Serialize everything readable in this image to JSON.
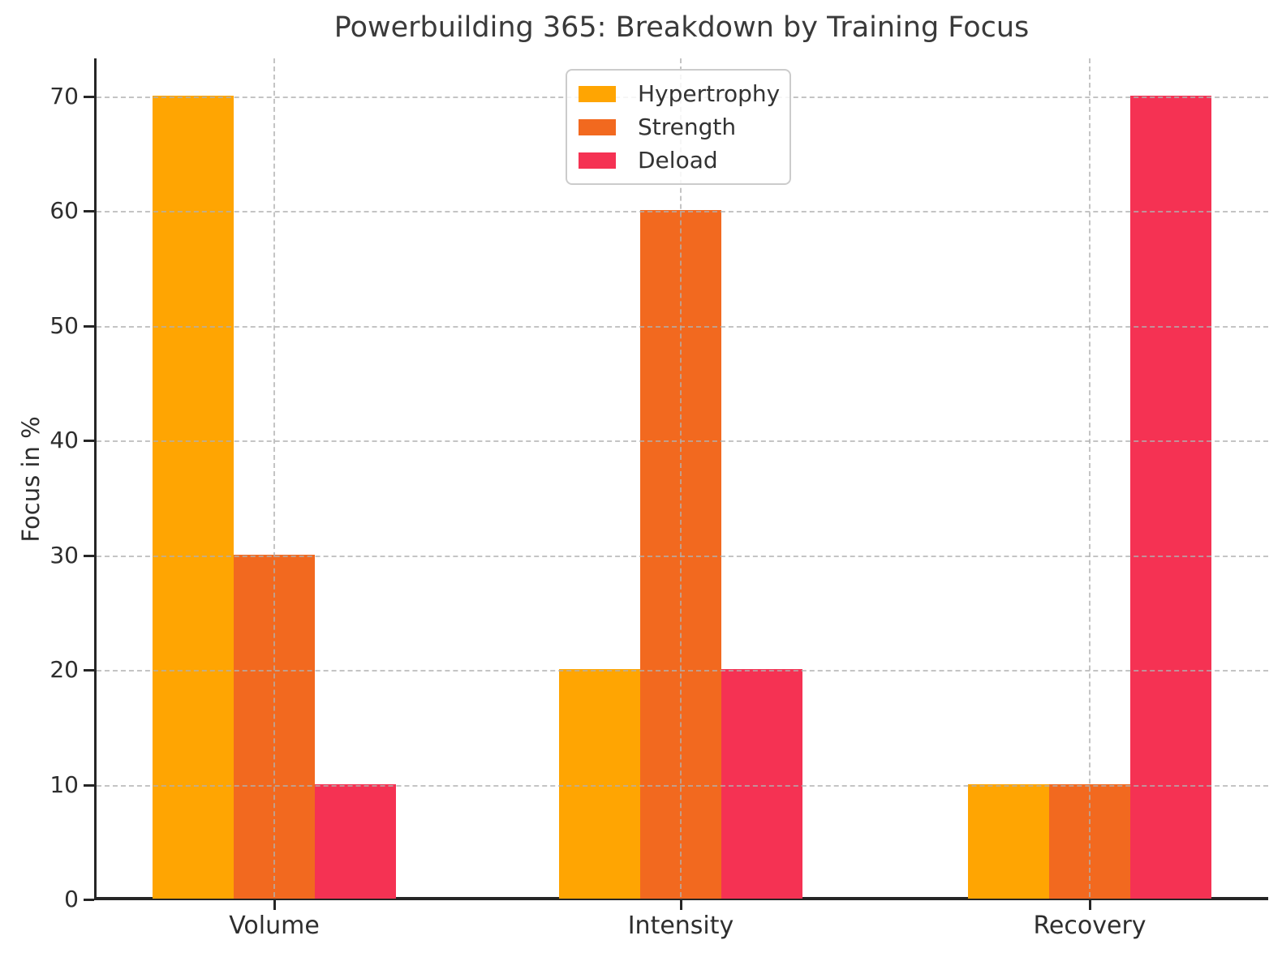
{
  "chart_data": {
    "type": "bar",
    "title": "Powerbuilding 365: Breakdown by Training Focus",
    "xlabel": "",
    "ylabel": "Focus in %",
    "categories": [
      "Volume",
      "Intensity",
      "Recovery"
    ],
    "series": [
      {
        "name": "Hypertrophy",
        "color": "#FFA502",
        "values": [
          70,
          20,
          10
        ]
      },
      {
        "name": "Strength",
        "color": "#F2691F",
        "values": [
          30,
          60,
          10
        ]
      },
      {
        "name": "Deload",
        "color": "#F53253",
        "values": [
          10,
          20,
          70
        ]
      }
    ],
    "ylim": [
      0,
      70
    ],
    "yticks": [
      0,
      10,
      20,
      30,
      40,
      50,
      60,
      70
    ],
    "grid": true,
    "grid_style": "dashed",
    "legend": {
      "position": "upper center",
      "labels": [
        "Hypertrophy",
        "Strength",
        "Deload"
      ]
    },
    "colors": {
      "background": "#FFFFFF",
      "grid": "#B0B0B0",
      "spine": "#262626",
      "tick_text": "#2E2E2E",
      "title_text": "#3A3A3A",
      "legend_border": "#CCCCCC"
    }
  }
}
